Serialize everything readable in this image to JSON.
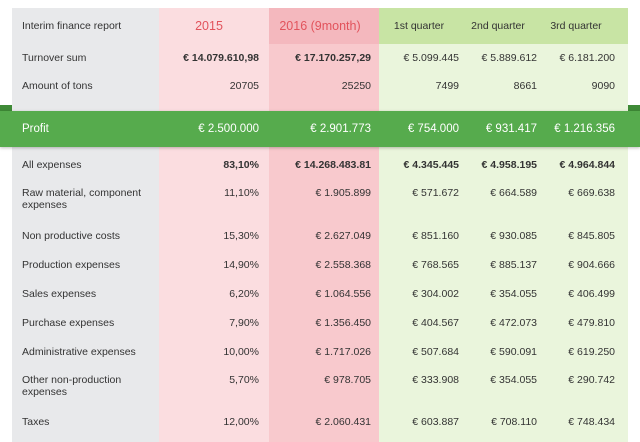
{
  "header": {
    "title": "Interim finance report",
    "y2015": "2015",
    "y2016": "2016 (9month)",
    "q1": "1st quarter",
    "q2": "2nd quarter",
    "q3": "3rd quarter"
  },
  "top_rows": [
    {
      "label": "Turnover sum",
      "v2015": "€ 14.079.610,98",
      "v2016": "€ 17.170.257,29",
      "q1": "€ 5.099.445",
      "q2": "€ 5.889.612",
      "q3": "€ 6.181.200"
    },
    {
      "label": "Amount of tons",
      "v2015": "20705",
      "v2016": "25250",
      "q1": "7499",
      "q2": "8661",
      "q3": "9090"
    }
  ],
  "profit": {
    "label": "Profit",
    "v2015": "€ 2.500.000",
    "v2016": "€ 2.901.773",
    "q1": "€ 754.000",
    "q2": "€ 931.417",
    "q3": "€ 1.216.356"
  },
  "expense_rows": [
    {
      "label": "All expenses",
      "v2015": "83,10%",
      "v2016": "€ 14.268.483.81",
      "q1": "€ 4.345.445",
      "q2": "€ 4.958.195",
      "q3": "€ 4.964.844"
    },
    {
      "label": "Raw material, component expenses",
      "v2015": "11,10%",
      "v2016": "€ 1.905.899",
      "q1": "€ 571.672",
      "q2": "€ 664.589",
      "q3": "€ 669.638"
    },
    {
      "label": "Non productive costs",
      "v2015": "15,30%",
      "v2016": "€ 2.627.049",
      "q1": "€ 851.160",
      "q2": "€ 930.085",
      "q3": "€ 845.805"
    },
    {
      "label": "Production expenses",
      "v2015": "14,90%",
      "v2016": "€ 2.558.368",
      "q1": "€ 768.565",
      "q2": "€ 885.137",
      "q3": "€ 904.666"
    },
    {
      "label": "Sales expenses",
      "v2015": "6,20%",
      "v2016": "€ 1.064.556",
      "q1": "€ 304.002",
      "q2": "€ 354.055",
      "q3": "€ 406.499"
    },
    {
      "label": "Purchase expenses",
      "v2015": "7,90%",
      "v2016": "€ 1.356.450",
      "q1": "€ 404.567",
      "q2": "€ 472.073",
      "q3": "€ 479.810"
    },
    {
      "label": "Administrative expenses",
      "v2015": "10,00%",
      "v2016": "€ 1.717.026",
      "q1": "€ 507.684",
      "q2": "€ 590.091",
      "q3": "€ 619.250"
    },
    {
      "label": "Other non-production expenses",
      "v2015": "5,70%",
      "v2016": "€ 978.705",
      "q1": "€ 333.908",
      "q2": "€ 354.055",
      "q3": "€ 290.742"
    },
    {
      "label": "Taxes",
      "v2015": "12,00%",
      "v2016": "€ 2.060.431",
      "q1": "€ 603.887",
      "q2": "€ 708.110",
      "q3": "€ 748.434"
    }
  ],
  "colors": {
    "profit_bar": "#56ab4d",
    "year_text": "#e2535c",
    "quarter_bg": "#eaf5dc",
    "year2016_bg": "#f8c9cd"
  }
}
